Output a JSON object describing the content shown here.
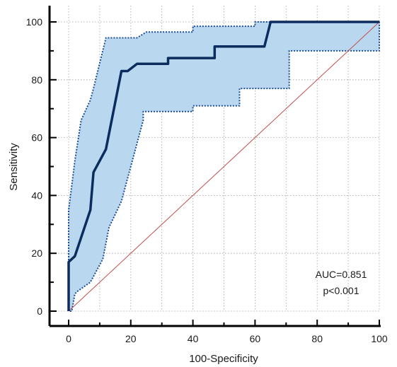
{
  "chart_data": {
    "type": "line",
    "title": "",
    "xlabel": "100-Specificity",
    "ylabel": "Sensitivity",
    "xlim": [
      0,
      100
    ],
    "ylim": [
      0,
      100
    ],
    "x_ticks": [
      0,
      20,
      40,
      60,
      80,
      100
    ],
    "y_ticks": [
      0,
      20,
      40,
      60,
      80,
      100
    ],
    "grid": true,
    "roc_curve": [
      [
        0,
        0
      ],
      [
        0,
        15
      ],
      [
        0,
        17
      ],
      [
        2,
        19
      ],
      [
        7,
        35
      ],
      [
        8,
        48
      ],
      [
        12,
        56
      ],
      [
        17,
        83
      ],
      [
        19,
        83
      ],
      [
        22,
        85.5
      ],
      [
        32,
        85.5
      ],
      [
        32,
        87.5
      ],
      [
        47,
        87.5
      ],
      [
        47,
        91.5
      ],
      [
        63,
        91.5
      ],
      [
        65,
        100
      ],
      [
        100,
        100
      ]
    ],
    "ci_upper": [
      [
        0,
        0
      ],
      [
        0,
        35
      ],
      [
        2,
        52
      ],
      [
        4,
        66
      ],
      [
        7,
        73
      ],
      [
        8,
        77
      ],
      [
        12,
        94.5
      ],
      [
        22,
        94.5
      ],
      [
        25,
        96.5
      ],
      [
        40,
        96.5
      ],
      [
        40,
        98.5
      ],
      [
        60,
        98.5
      ],
      [
        60,
        100
      ],
      [
        100,
        100
      ]
    ],
    "ci_lower": [
      [
        100,
        90
      ],
      [
        71,
        90
      ],
      [
        71,
        77
      ],
      [
        55,
        77
      ],
      [
        55,
        71
      ],
      [
        40,
        71
      ],
      [
        40,
        69
      ],
      [
        24,
        69
      ],
      [
        24,
        66
      ],
      [
        20,
        50
      ],
      [
        17,
        38
      ],
      [
        13,
        29
      ],
      [
        11,
        18
      ],
      [
        7,
        10
      ],
      [
        3,
        7
      ],
      [
        2,
        6
      ],
      [
        1,
        0
      ]
    ],
    "reference_line": [
      [
        0,
        0
      ],
      [
        100,
        100
      ]
    ],
    "annotations": [
      "AUC=0.851",
      "p<0.001"
    ],
    "colors": {
      "curve": "#0d2c5e",
      "ci_fill": "#b9d7ee",
      "ci_border": "#1c4e96",
      "reference": "#c0504d",
      "grid": "#a0a0a0",
      "axis": "#000000"
    }
  }
}
